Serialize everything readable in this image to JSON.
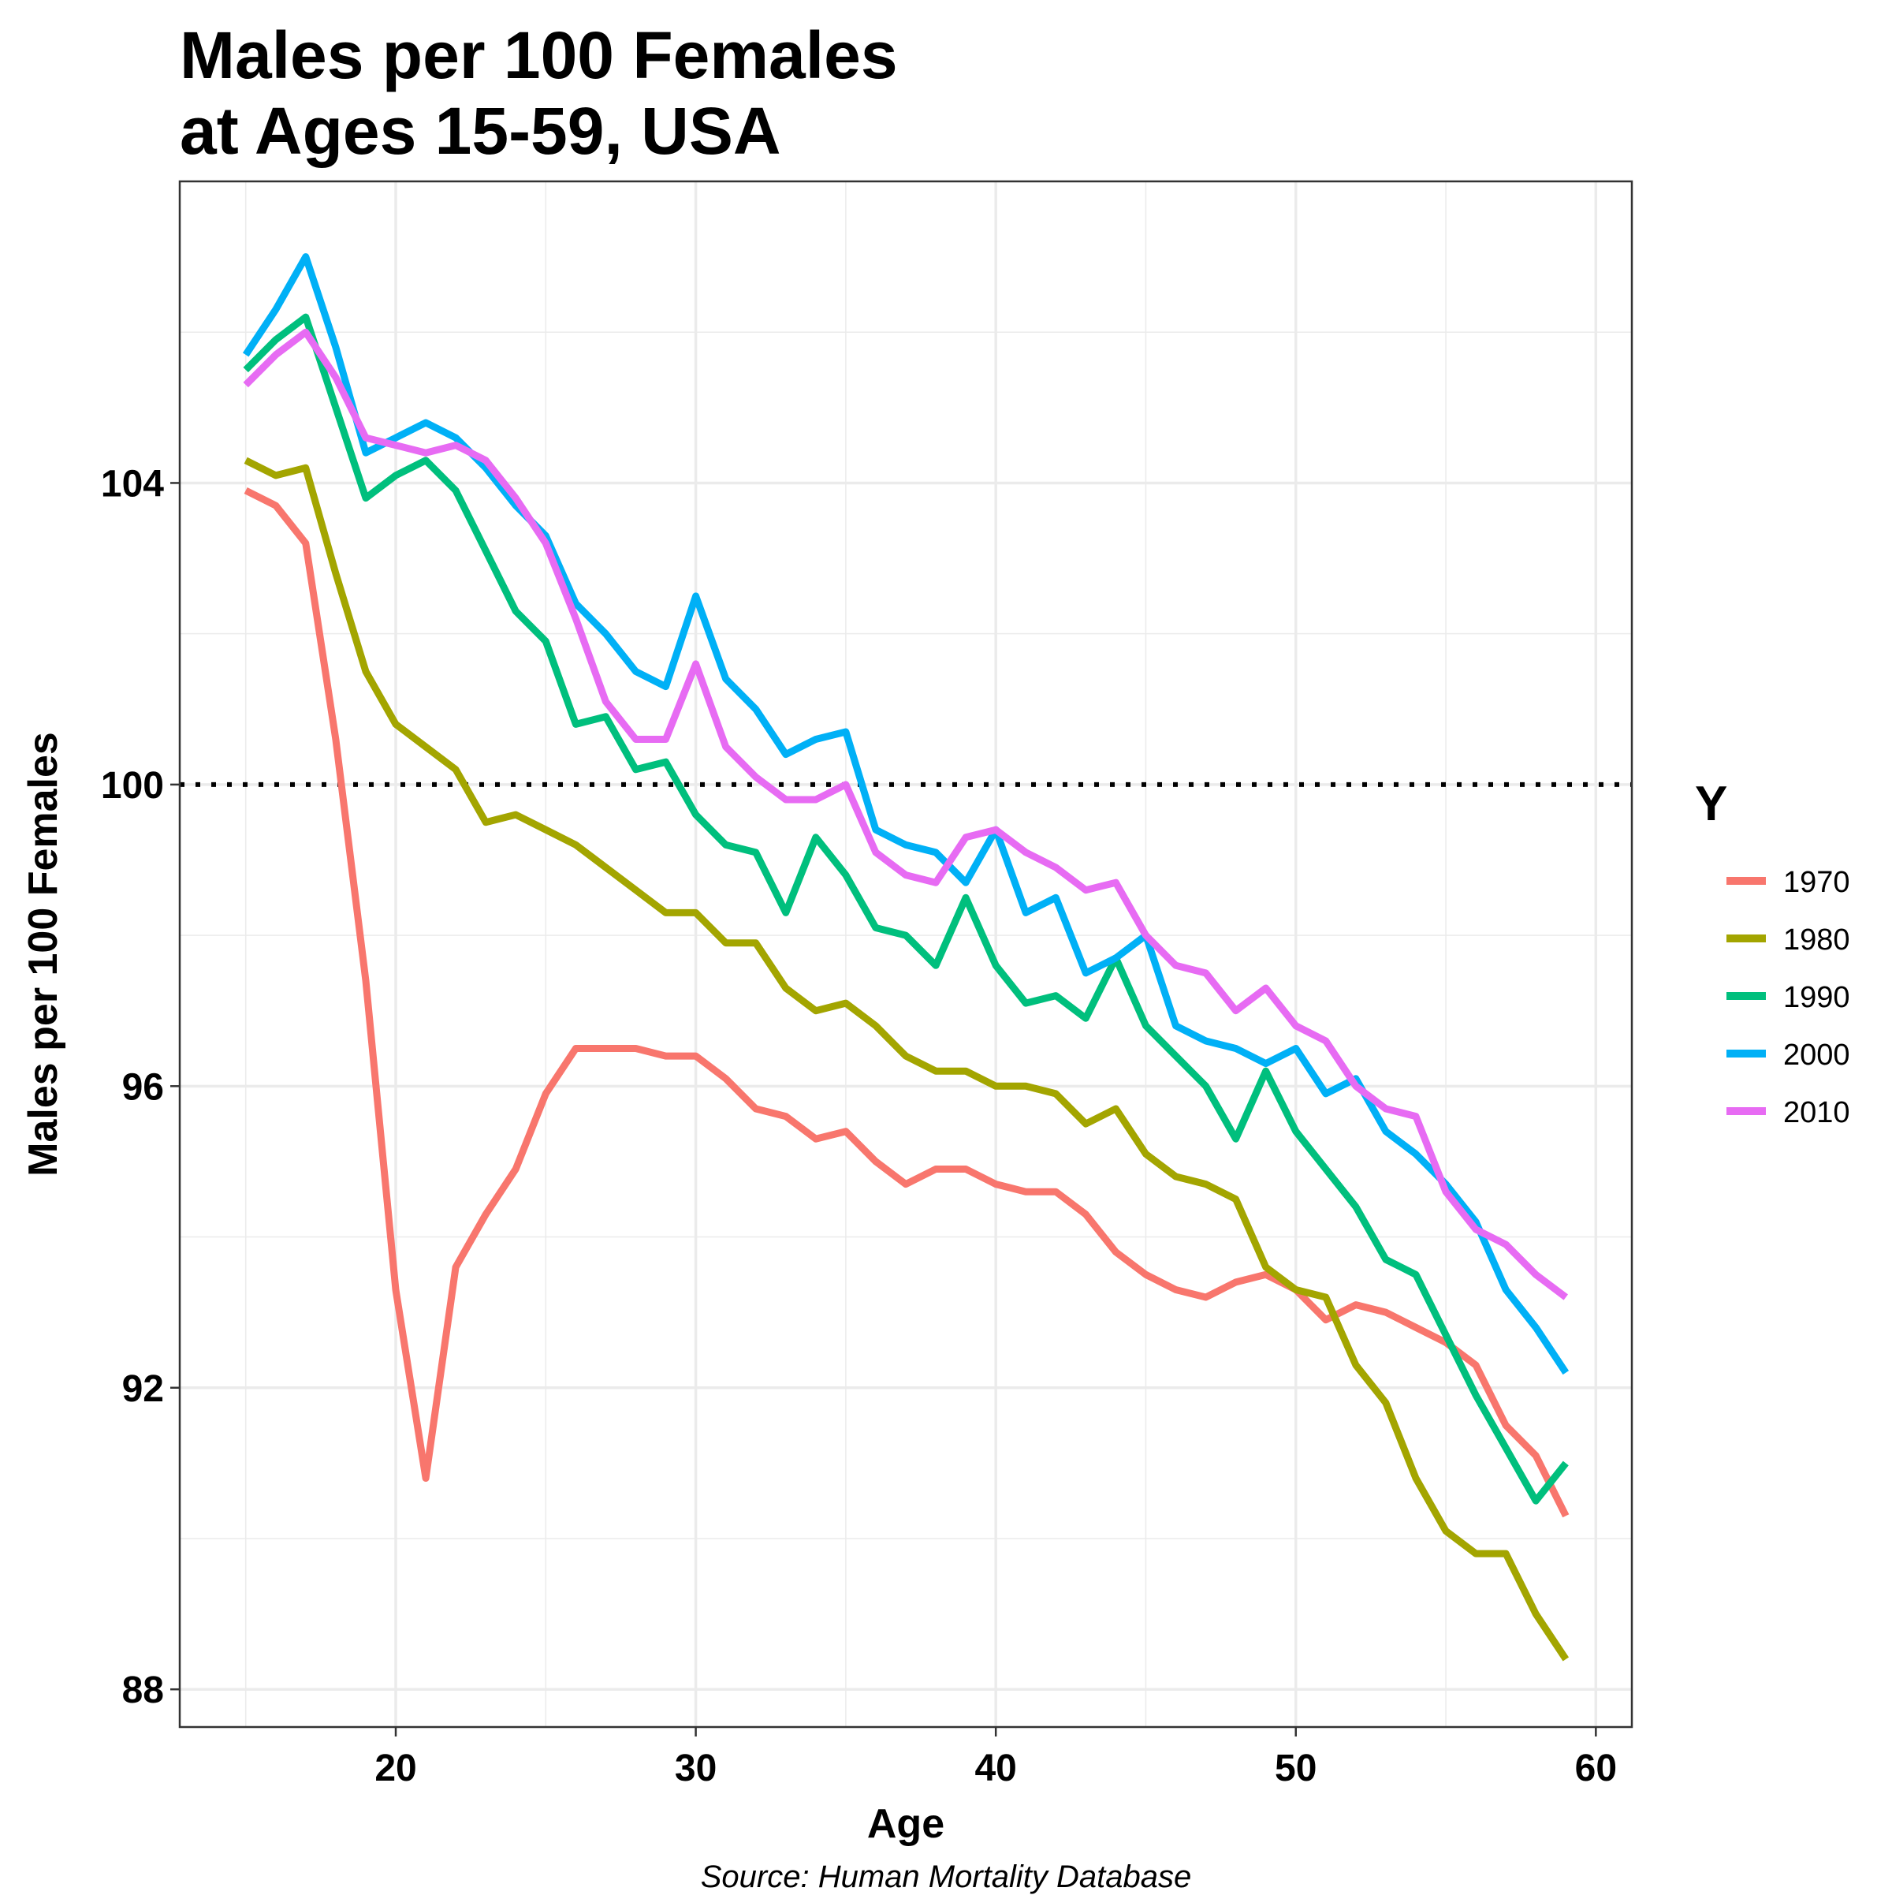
{
  "chart_data": {
    "type": "line",
    "title": "Males per 100 Females",
    "subtitle": "at Ages 15-59, USA",
    "xlabel": "Age",
    "ylabel": "Males per 100 Females",
    "caption": "Source: Human Mortality Database",
    "legend_title": "Y",
    "legend_position": "right",
    "grid": true,
    "reference_line": {
      "y": 100,
      "style": "dotted"
    },
    "xlim": [
      12.8,
      61.2
    ],
    "ylim": [
      87.5,
      108.0
    ],
    "xticks": [
      20,
      30,
      40,
      50,
      60
    ],
    "yticks": [
      88,
      92,
      96,
      100,
      104
    ],
    "x": [
      15,
      16,
      17,
      18,
      19,
      20,
      21,
      22,
      23,
      24,
      25,
      26,
      27,
      28,
      29,
      30,
      31,
      32,
      33,
      34,
      35,
      36,
      37,
      38,
      39,
      40,
      41,
      42,
      43,
      44,
      45,
      46,
      47,
      48,
      49,
      50,
      51,
      52,
      53,
      54,
      55,
      56,
      57,
      58,
      59
    ],
    "series": [
      {
        "name": "1970",
        "color": "#F8766D",
        "values": [
          103.9,
          103.7,
          103.2,
          100.6,
          97.4,
          93.3,
          90.8,
          93.6,
          94.3,
          94.9,
          95.9,
          96.5,
          96.5,
          96.5,
          96.4,
          96.4,
          96.1,
          95.7,
          95.6,
          95.3,
          95.4,
          95.0,
          94.7,
          94.9,
          94.9,
          94.7,
          94.6,
          94.6,
          94.3,
          93.8,
          93.5,
          93.3,
          93.2,
          93.4,
          93.5,
          93.3,
          92.9,
          93.1,
          93.0,
          92.8,
          92.6,
          92.3,
          91.5,
          91.1,
          90.3
        ]
      },
      {
        "name": "1980",
        "color": "#A3A500",
        "values": [
          104.3,
          104.1,
          104.2,
          102.8,
          101.5,
          100.8,
          100.5,
          100.2,
          99.5,
          99.6,
          99.4,
          99.2,
          98.9,
          98.6,
          98.3,
          98.3,
          97.9,
          97.9,
          97.3,
          97.0,
          97.1,
          96.8,
          96.4,
          96.2,
          96.2,
          96.0,
          96.0,
          95.9,
          95.5,
          95.7,
          95.1,
          94.8,
          94.7,
          94.5,
          93.6,
          93.3,
          93.2,
          92.3,
          91.8,
          90.8,
          90.1,
          89.8,
          89.8,
          89.0,
          88.4
        ]
      },
      {
        "name": "1990",
        "color": "#00BF7D",
        "values": [
          105.5,
          105.9,
          106.2,
          105.0,
          103.8,
          104.1,
          104.3,
          103.9,
          103.1,
          102.3,
          101.9,
          100.8,
          100.9,
          100.2,
          100.3,
          99.6,
          99.2,
          99.1,
          98.3,
          99.3,
          98.8,
          98.1,
          98.0,
          97.6,
          98.5,
          97.6,
          97.1,
          97.2,
          96.9,
          97.7,
          96.8,
          96.4,
          96.0,
          95.3,
          96.2,
          95.4,
          94.9,
          94.4,
          93.7,
          93.5,
          92.7,
          91.9,
          91.2,
          90.5,
          91.0
        ]
      },
      {
        "name": "2000",
        "color": "#00B0F6",
        "values": [
          105.7,
          106.3,
          107.0,
          105.8,
          104.4,
          104.6,
          104.8,
          104.6,
          104.2,
          103.7,
          103.3,
          102.4,
          102.0,
          101.5,
          101.3,
          102.5,
          101.4,
          101.0,
          100.4,
          100.6,
          100.7,
          99.4,
          99.2,
          99.1,
          98.7,
          99.4,
          98.3,
          98.5,
          97.5,
          97.7,
          98.0,
          96.8,
          96.6,
          96.5,
          96.3,
          96.5,
          95.9,
          96.1,
          95.4,
          95.1,
          94.7,
          94.2,
          93.3,
          92.8,
          92.2
        ]
      },
      {
        "name": "2010",
        "color": "#E76BF3",
        "values": [
          105.3,
          105.7,
          106.0,
          105.4,
          104.6,
          104.5,
          104.4,
          104.5,
          104.3,
          103.8,
          103.2,
          102.2,
          101.1,
          100.6,
          100.6,
          101.6,
          100.5,
          100.1,
          99.8,
          99.8,
          100.0,
          99.1,
          98.8,
          98.7,
          99.3,
          99.4,
          99.1,
          98.9,
          98.6,
          98.7,
          98.0,
          97.6,
          97.5,
          97.0,
          97.3,
          96.8,
          96.6,
          96.0,
          95.7,
          95.6,
          94.6,
          94.1,
          93.9,
          93.5,
          93.2
        ]
      }
    ]
  }
}
